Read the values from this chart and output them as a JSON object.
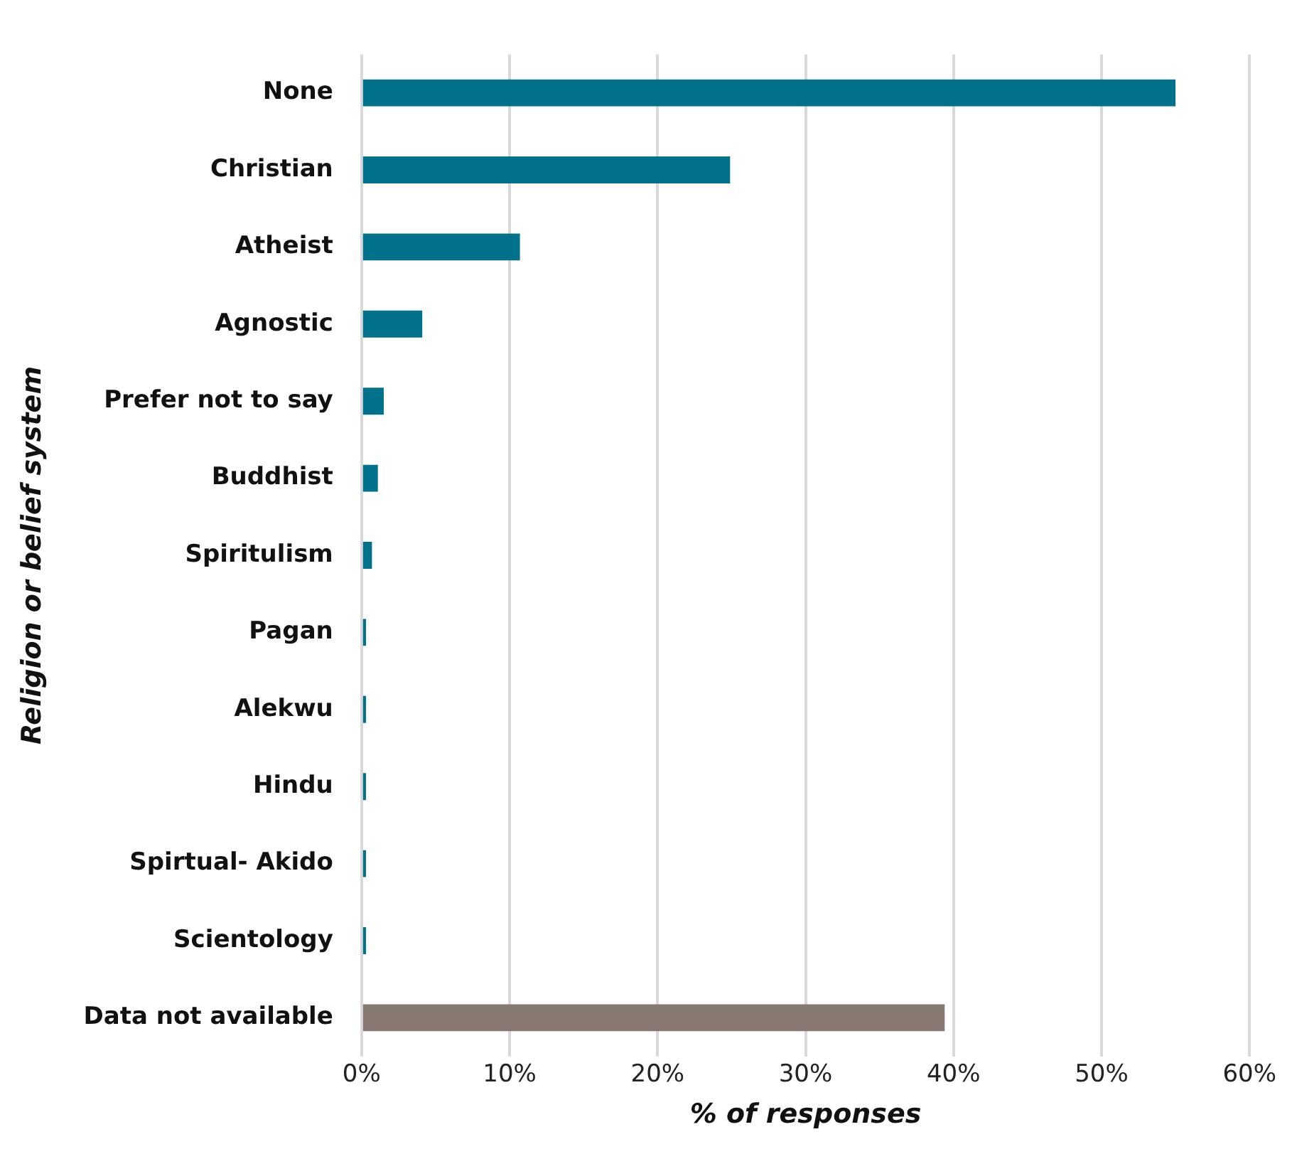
{
  "chart_data": {
    "type": "bar",
    "orientation": "horizontal",
    "xlabel": "% of responses",
    "ylabel": "Religion or belief system",
    "categories": [
      "None",
      "Christian",
      "Atheist",
      "Agnostic",
      "Prefer not to say",
      "Buddhist",
      "Spiritulism",
      "Pagan",
      "Alekwu",
      "Hindu",
      "Spirtual- Akido",
      "Scientology",
      "Data not available"
    ],
    "values": [
      55.0,
      24.9,
      10.7,
      4.1,
      1.5,
      1.1,
      0.7,
      0.3,
      0.3,
      0.3,
      0.3,
      0.3,
      39.4
    ],
    "colors": [
      "#02728c",
      "#02728c",
      "#02728c",
      "#02728c",
      "#02728c",
      "#02728c",
      "#02728c",
      "#02728c",
      "#02728c",
      "#02728c",
      "#02728c",
      "#02728c",
      "#877872"
    ],
    "xlim": [
      0,
      60
    ],
    "xticks": [
      {
        "value": 0,
        "label": "0%"
      },
      {
        "value": 10,
        "label": "10%"
      },
      {
        "value": 20,
        "label": "20%"
      },
      {
        "value": 30,
        "label": "30%"
      },
      {
        "value": 40,
        "label": "40%"
      },
      {
        "value": 50,
        "label": "50%"
      },
      {
        "value": 60,
        "label": "60%"
      }
    ],
    "grid": "x",
    "legend": false
  }
}
